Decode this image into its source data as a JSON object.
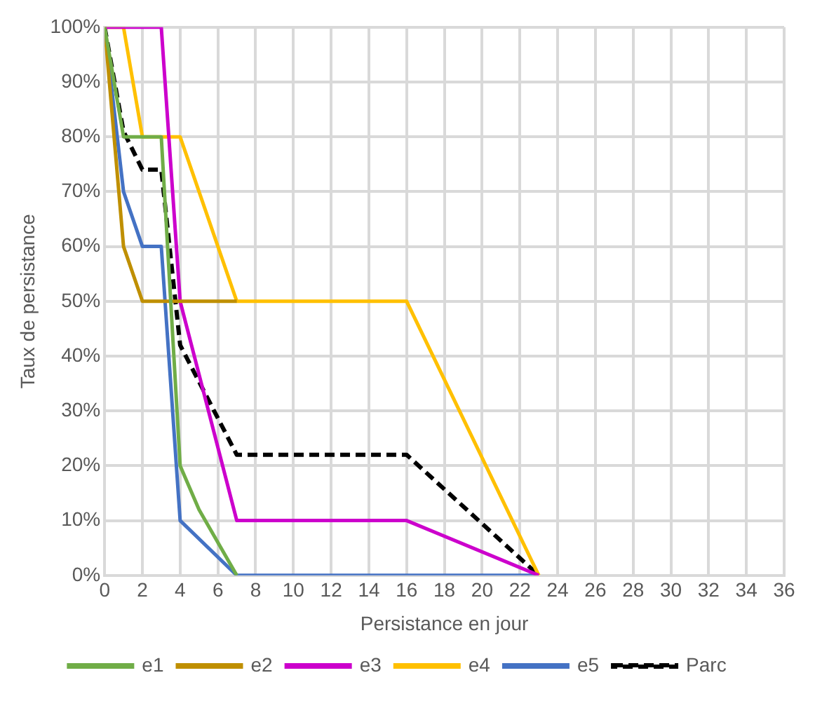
{
  "chart_data": {
    "type": "line",
    "xlabel": "Persistance en jour",
    "ylabel": "Taux de persistance",
    "xlim": [
      0,
      36
    ],
    "xticks": [
      0,
      2,
      4,
      6,
      8,
      10,
      12,
      14,
      16,
      18,
      20,
      22,
      24,
      26,
      28,
      30,
      32,
      34,
      36
    ],
    "ylim": [
      0,
      100
    ],
    "yticks": [
      {
        "value": 0,
        "label": "0%"
      },
      {
        "value": 10,
        "label": "10%"
      },
      {
        "value": 20,
        "label": "20%"
      },
      {
        "value": 30,
        "label": "30%"
      },
      {
        "value": 40,
        "label": "40%"
      },
      {
        "value": 50,
        "label": "50%"
      },
      {
        "value": 60,
        "label": "60%"
      },
      {
        "value": 70,
        "label": "70%"
      },
      {
        "value": 80,
        "label": "80%"
      },
      {
        "value": 90,
        "label": "90%"
      },
      {
        "value": 100,
        "label": "100%"
      }
    ],
    "grid": true,
    "legend": "bottom",
    "marker": "none",
    "series": [
      {
        "name": "e1",
        "color": "#70ad47",
        "line_style": "solid",
        "x": [
          0,
          1,
          2,
          3,
          4,
          5,
          7
        ],
        "values": [
          100,
          80,
          80,
          80,
          20,
          12,
          0
        ]
      },
      {
        "name": "e2",
        "color": "#bf8f00",
        "line_style": "solid",
        "x": [
          0,
          1,
          2,
          7
        ],
        "values": [
          100,
          60,
          50,
          50
        ]
      },
      {
        "name": "e3",
        "color": "#cc00cc",
        "line_style": "solid",
        "x": [
          0,
          3,
          4,
          7,
          16,
          23
        ],
        "values": [
          100,
          100,
          50,
          10,
          10,
          0
        ]
      },
      {
        "name": "e4",
        "color": "#ffc000",
        "line_style": "solid",
        "x": [
          0,
          1,
          2,
          4,
          7,
          16,
          23
        ],
        "values": [
          100,
          100,
          80,
          80,
          50,
          50,
          0
        ]
      },
      {
        "name": "e5",
        "color": "#4472c4",
        "line_style": "solid",
        "x": [
          0,
          1,
          2,
          3,
          4,
          7,
          23
        ],
        "values": [
          100,
          70,
          60,
          60,
          10,
          0,
          0
        ]
      },
      {
        "name": "Parc",
        "color": "#000000",
        "line_style": "dashed",
        "x": [
          0,
          1,
          2,
          3,
          4,
          7,
          16,
          23
        ],
        "values": [
          100,
          81,
          74,
          74,
          42,
          22,
          22,
          0
        ]
      }
    ]
  }
}
